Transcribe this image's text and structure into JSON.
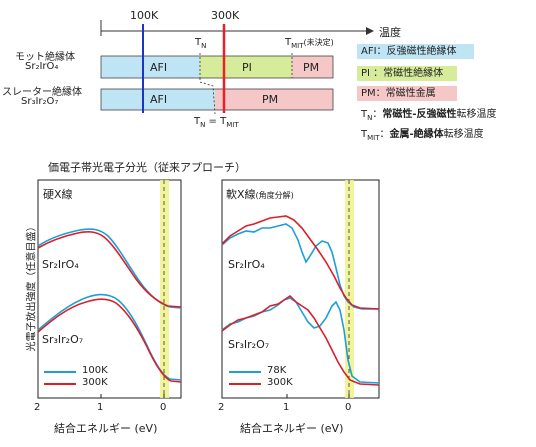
{
  "phase": {
    "axis_label": "温度",
    "ticks": [
      "100K",
      "300K"
    ],
    "row1_name": "モット絶縁体",
    "row1_formula": "Sr₂IrO₄",
    "row2_name": "スレーター絶縁体",
    "row2_formula": "Sr₃Ir₂O₇",
    "regions_row1": [
      "AFI",
      "PI",
      "PM"
    ],
    "regions_row2": [
      "AFI",
      "PM"
    ],
    "tn_label": "T",
    "tn_sub": "N",
    "tmit_label": "T",
    "tmit_sub": "MIT",
    "tmit_note": "(未決定)",
    "tn_eq": "T",
    "tn_eq_sub": "N",
    "tn_eq_mid": " = T",
    "tn_eq_sub2": "MIT",
    "colors": {
      "AFI": "#bfe5f4",
      "PI": "#d7ec9a",
      "PM": "#f6c7c7",
      "line100K": "#1b35c8",
      "line300K": "#e8202a"
    }
  },
  "legend": {
    "afi": "AFI：反強磁性絶縁体",
    "pi": "PI  ：常磁性絶縁体",
    "pm": "PM：常磁性金属",
    "tn_sym": "T",
    "tn_sub": "N",
    "tn_desc_bold": "常磁性-反強磁性",
    "tn_desc_rest": "転移温度",
    "tmit_sym": "T",
    "tmit_sub": "MIT",
    "tmit_desc_bold": "金属-絶縁体",
    "tmit_desc_rest": "転移温度"
  },
  "spectra": {
    "title": "価電子帯光電子分光（従来アプローチ）",
    "ylabel": "光電子放出強度（任意目盛）",
    "panels": [
      {
        "title": "硬X線",
        "title_note": "",
        "sample1": "Sr₂IrO₄",
        "sample2": "Sr₃Ir₂O₇",
        "series": [
          {
            "name": "100K",
            "color": "#1e9ed8"
          },
          {
            "name": "300K",
            "color": "#d8202a"
          }
        ],
        "xlabel": "結合エネルギー (eV)",
        "xticks": [
          "2",
          "1",
          "0"
        ]
      },
      {
        "title": "軟X線",
        "title_note": "(角度分解)",
        "sample1": "Sr₂IrO₄",
        "sample2": "Sr₃Ir₂O₇",
        "series": [
          {
            "name": "78K",
            "color": "#1e9ed8"
          },
          {
            "name": "300K",
            "color": "#d8202a"
          }
        ],
        "xlabel": "結合エネルギー (eV)",
        "xticks": [
          "2",
          "1",
          "0"
        ]
      }
    ]
  }
}
